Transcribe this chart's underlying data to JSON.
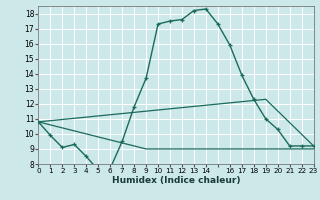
{
  "xlabel": "Humidex (Indice chaleur)",
  "bg_color": "#cce8e8",
  "grid_color": "#aed4d4",
  "line_color": "#1a6b5a",
  "line1_x": [
    0,
    1,
    2,
    3,
    4,
    5,
    6,
    7,
    8,
    9,
    10,
    11,
    12,
    13,
    14,
    15,
    16,
    17,
    18,
    19,
    20,
    21,
    22,
    23
  ],
  "line1_y": [
    10.8,
    9.9,
    9.1,
    9.3,
    8.5,
    7.6,
    7.7,
    9.5,
    11.8,
    13.7,
    17.3,
    17.5,
    17.6,
    18.2,
    18.3,
    17.3,
    15.9,
    13.9,
    12.3,
    11.0,
    10.3,
    9.2,
    9.2,
    9.2
  ],
  "line2_x": [
    0,
    9,
    23
  ],
  "line2_y": [
    10.8,
    9.0,
    9.0
  ],
  "line3_x": [
    0,
    19,
    23
  ],
  "line3_y": [
    10.8,
    12.3,
    9.2
  ],
  "xlim": [
    0,
    23
  ],
  "ylim": [
    8,
    18.5
  ],
  "yticks": [
    8,
    9,
    10,
    11,
    12,
    13,
    14,
    15,
    16,
    17,
    18
  ],
  "xticks": [
    0,
    1,
    2,
    3,
    4,
    5,
    6,
    7,
    8,
    9,
    10,
    11,
    12,
    13,
    14,
    15,
    16,
    17,
    18,
    19,
    20,
    21,
    22,
    23
  ],
  "xtick_labels": [
    "0",
    "1",
    "2",
    "3",
    "4",
    "5",
    "6",
    "7",
    "8",
    "9",
    "10",
    "11",
    "12",
    "13",
    "14",
    "",
    "16",
    "17",
    "18",
    "19",
    "20",
    "21",
    "22",
    "23"
  ]
}
